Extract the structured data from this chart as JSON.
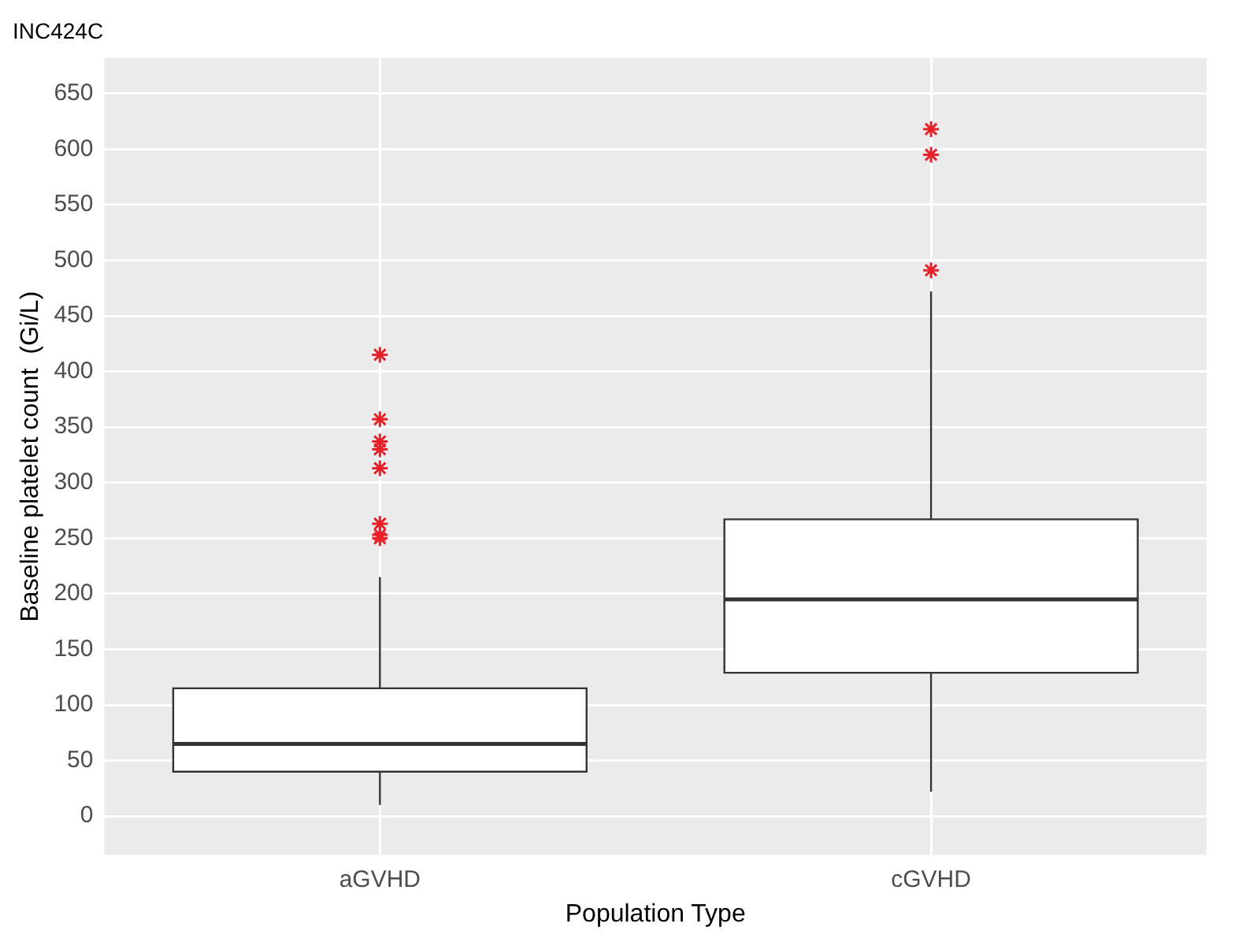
{
  "chart_data": {
    "type": "box",
    "title": "INC424C",
    "xlabel": "Population Type",
    "ylabel": "Baseline platelet count  (Gi/L)",
    "categories": [
      "aGVHD",
      "cGVHD"
    ],
    "boxes": [
      {
        "low": 10,
        "q1": 40,
        "median": 65,
        "q3": 115,
        "high": 215,
        "outliers": [
          415,
          357,
          337,
          330,
          313,
          263,
          253,
          250
        ]
      },
      {
        "low": 22,
        "q1": 129,
        "median": 195,
        "q3": 267,
        "high": 472,
        "outliers": [
          618,
          595,
          491
        ]
      }
    ],
    "ylim": [
      -35,
      682
    ],
    "yticks": [
      0,
      50,
      100,
      150,
      200,
      250,
      300,
      350,
      400,
      450,
      500,
      550,
      600,
      650
    ],
    "grid": true,
    "marker": "star"
  }
}
